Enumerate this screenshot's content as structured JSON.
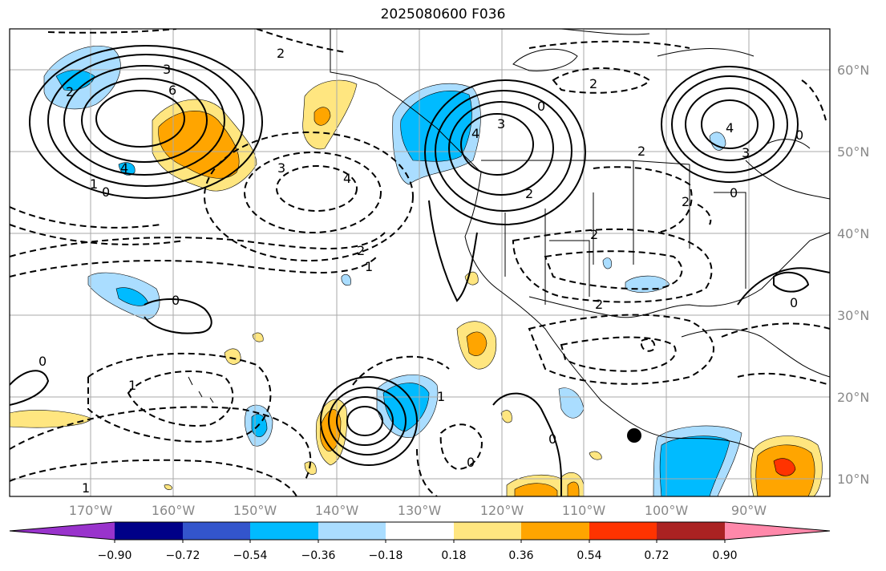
{
  "title": "2025080600 F036",
  "lat_labels": [
    "60°N",
    "50°N",
    "40°N",
    "30°N",
    "20°N",
    "10°N"
  ],
  "lon_labels": [
    "170°W",
    "160°W",
    "150°W",
    "140°W",
    "130°W",
    "120°W",
    "110°W",
    "100°W",
    "90°W"
  ],
  "colorbar": {
    "tick_labels": [
      "−0.90",
      "−0.72",
      "−0.54",
      "−0.36",
      "−0.18",
      "0.18",
      "0.36",
      "0.54",
      "0.72",
      "0.90"
    ],
    "colors": [
      "#9933cc",
      "#000088",
      "#3355cc",
      "#00bbff",
      "#aaddff",
      "#ffffff",
      "#ffe680",
      "#ffa500",
      "#ff3300",
      "#aa2222",
      "#ff88aa"
    ]
  },
  "contour_labels": [
    "6",
    "3",
    "4",
    "1",
    "0",
    "2",
    "2",
    "3",
    "4",
    "2",
    "1",
    "0",
    "3",
    "4",
    "2",
    "2",
    "4",
    "3",
    "0",
    "2",
    "2",
    "0",
    "1",
    "0",
    "0",
    "2",
    "2",
    "1",
    "0",
    "0",
    "0",
    "1"
  ],
  "shading_colors": {
    "light_blue": "#aaddff",
    "blue": "#00bbff",
    "yellow": "#ffe680",
    "orange": "#ffa500",
    "red": "#ff3300"
  }
}
